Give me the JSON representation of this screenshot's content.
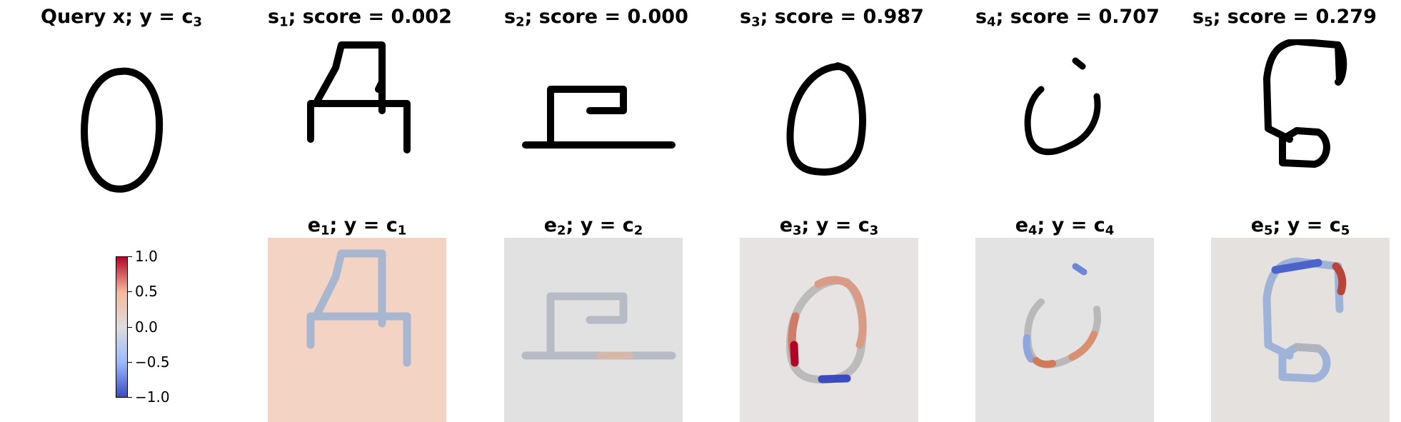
{
  "titles": {
    "query": {
      "pre": "Query x; y = c",
      "sub": "3"
    },
    "s": [
      {
        "name": "s",
        "sub": "1",
        "rest": "; score = 0.002"
      },
      {
        "name": "s",
        "sub": "2",
        "rest": "; score = 0.000"
      },
      {
        "name": "s",
        "sub": "3",
        "rest": "; score = 0.987"
      },
      {
        "name": "s",
        "sub": "4",
        "rest": "; score = 0.707"
      },
      {
        "name": "s",
        "sub": "5",
        "rest": "; score = 0.279"
      }
    ],
    "e": [
      {
        "name": "e",
        "sub": "1",
        "rest": "; y = c",
        "sub2": "1"
      },
      {
        "name": "e",
        "sub": "2",
        "rest": "; y = c",
        "sub2": "2"
      },
      {
        "name": "e",
        "sub": "3",
        "rest": "; y = c",
        "sub2": "3"
      },
      {
        "name": "e",
        "sub": "4",
        "rest": "; y = c",
        "sub2": "4"
      },
      {
        "name": "e",
        "sub": "5",
        "rest": "; y = c",
        "sub2": "5"
      }
    ]
  },
  "colorbar": {
    "ticks": [
      "1.0",
      "0.5",
      "0.0",
      "−0.5",
      "−1.0"
    ],
    "colors": {
      "high": "#b40426",
      "mid": "#dddddd",
      "low": "#3b4cc0"
    }
  },
  "explanation_backgrounds": [
    "#f2d3c4",
    "#e1e1e1",
    "#e6e3e2",
    "#e3e3e3",
    "#e5e1df"
  ]
}
